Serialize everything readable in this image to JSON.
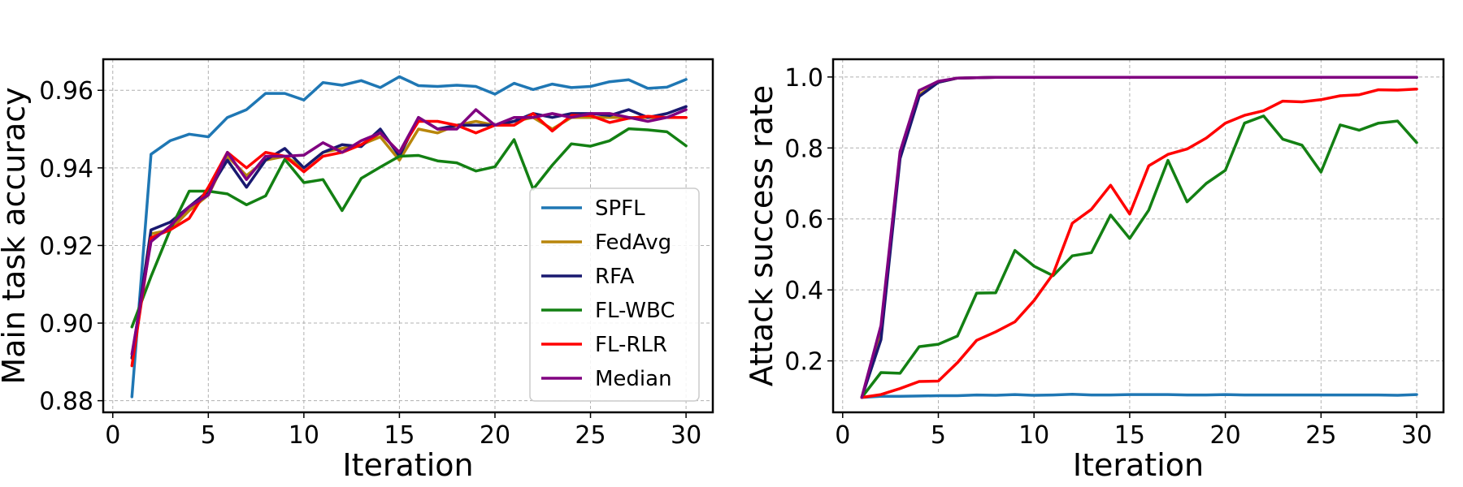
{
  "chart_data": [
    {
      "type": "line",
      "xlabel": "Iteration",
      "ylabel": "Main task accuracy",
      "xlim": [
        -0.5,
        31.4
      ],
      "ylim": [
        0.877,
        0.968
      ],
      "xticks": [
        0,
        5,
        10,
        15,
        20,
        25,
        30
      ],
      "xtick_labels": [
        "0",
        "5",
        "10",
        "15",
        "20",
        "25",
        "30"
      ],
      "yticks": [
        0.88,
        0.9,
        0.92,
        0.94,
        0.96
      ],
      "ytick_labels": [
        "0.88",
        "0.90",
        "0.92",
        "0.94",
        "0.96"
      ],
      "grid": true,
      "legend": "lower-right",
      "x": [
        1,
        2,
        3,
        4,
        5,
        6,
        7,
        8,
        9,
        10,
        11,
        12,
        13,
        14,
        15,
        16,
        17,
        18,
        19,
        20,
        21,
        22,
        23,
        24,
        25,
        26,
        27,
        28,
        29,
        30
      ],
      "series": [
        {
          "name": "SPFL",
          "color": "#1f77b4",
          "values": [
            0.881,
            0.9435,
            0.947,
            0.9487,
            0.948,
            0.953,
            0.955,
            0.9592,
            0.9592,
            0.9575,
            0.962,
            0.9613,
            0.9625,
            0.9607,
            0.9635,
            0.9612,
            0.961,
            0.9613,
            0.961,
            0.959,
            0.9618,
            0.9602,
            0.9616,
            0.9607,
            0.961,
            0.9622,
            0.9627,
            0.9605,
            0.9608,
            0.9628
          ]
        },
        {
          "name": "FedAvg",
          "color": "#b8860b",
          "values": [
            0.891,
            0.923,
            0.924,
            0.929,
            0.933,
            0.943,
            0.938,
            0.942,
            0.943,
            0.94,
            0.944,
            0.945,
            0.946,
            0.948,
            0.942,
            0.95,
            0.949,
            0.951,
            0.952,
            0.951,
            0.952,
            0.953,
            0.95,
            0.953,
            0.953,
            0.953,
            0.953,
            0.953,
            0.953,
            0.953
          ]
        },
        {
          "name": "RFA",
          "color": "#191970",
          "values": [
            0.891,
            0.924,
            0.926,
            0.93,
            0.934,
            0.942,
            0.935,
            0.942,
            0.945,
            0.94,
            0.944,
            0.946,
            0.9455,
            0.95,
            0.943,
            0.953,
            0.95,
            0.951,
            0.951,
            0.951,
            0.952,
            0.954,
            0.953,
            0.954,
            0.954,
            0.9535,
            0.955,
            0.953,
            0.954,
            0.9558
          ]
        },
        {
          "name": "FL-WBC",
          "color": "#138013",
          "values": [
            0.899,
            0.912,
            0.924,
            0.934,
            0.934,
            0.9333,
            0.9305,
            0.9328,
            0.9422,
            0.9362,
            0.937,
            0.929,
            0.9373,
            0.9402,
            0.943,
            0.9432,
            0.9418,
            0.9413,
            0.9392,
            0.9403,
            0.9473,
            0.9345,
            0.9407,
            0.9462,
            0.9456,
            0.947,
            0.9501,
            0.9498,
            0.9493,
            0.9457
          ]
        },
        {
          "name": "FL-RLR",
          "color": "#ff0000",
          "values": [
            0.889,
            0.922,
            0.924,
            0.927,
            0.935,
            0.944,
            0.94,
            0.944,
            0.943,
            0.939,
            0.943,
            0.944,
            0.946,
            0.949,
            0.944,
            0.952,
            0.952,
            0.951,
            0.949,
            0.951,
            0.951,
            0.954,
            0.9495,
            0.9535,
            0.9535,
            0.9517,
            0.9528,
            0.9533,
            0.953,
            0.953
          ]
        },
        {
          "name": "Median",
          "color": "#800080",
          "values": [
            0.892,
            0.921,
            0.925,
            0.93,
            0.933,
            0.944,
            0.937,
            0.943,
            0.943,
            0.9433,
            0.9465,
            0.944,
            0.947,
            0.949,
            0.944,
            0.953,
            0.95,
            0.95,
            0.955,
            0.951,
            0.953,
            0.953,
            0.954,
            0.953,
            0.954,
            0.954,
            0.953,
            0.952,
            0.953,
            0.955
          ]
        }
      ]
    },
    {
      "type": "line",
      "xlabel": "Iteration",
      "ylabel": "Attack success rate",
      "xlim": [
        -0.5,
        31.4
      ],
      "ylim": [
        0.055,
        1.05
      ],
      "xticks": [
        0,
        5,
        10,
        15,
        20,
        25,
        30
      ],
      "xtick_labels": [
        "0",
        "5",
        "10",
        "15",
        "20",
        "25",
        "30"
      ],
      "yticks": [
        0.2,
        0.4,
        0.6,
        0.8,
        1.0
      ],
      "ytick_labels": [
        "0.2",
        "0.4",
        "0.6",
        "0.8",
        "1.0"
      ],
      "grid": true,
      "x": [
        1,
        2,
        3,
        4,
        5,
        6,
        7,
        8,
        9,
        10,
        11,
        12,
        13,
        14,
        15,
        16,
        17,
        18,
        19,
        20,
        21,
        22,
        23,
        24,
        25,
        26,
        27,
        28,
        29,
        30
      ],
      "series": [
        {
          "name": "SPFL",
          "color": "#1f77b4",
          "values": [
            0.097,
            0.1,
            0.1,
            0.101,
            0.102,
            0.102,
            0.104,
            0.103,
            0.105,
            0.103,
            0.104,
            0.106,
            0.104,
            0.104,
            0.105,
            0.105,
            0.105,
            0.104,
            0.104,
            0.105,
            0.104,
            0.104,
            0.104,
            0.104,
            0.104,
            0.104,
            0.104,
            0.104,
            0.103,
            0.105
          ]
        },
        {
          "name": "FedAvg",
          "color": "#b8860b",
          "values": [
            0.097,
            0.27,
            0.78,
            0.95,
            0.985,
            0.997,
            0.998,
            0.999,
            0.999,
            0.999,
            0.999,
            0.999,
            0.999,
            0.999,
            0.999,
            0.999,
            0.999,
            0.999,
            0.999,
            0.999,
            0.999,
            0.999,
            0.999,
            0.999,
            0.999,
            0.999,
            0.999,
            0.999,
            0.999,
            0.999
          ]
        },
        {
          "name": "RFA",
          "color": "#191970",
          "values": [
            0.097,
            0.26,
            0.77,
            0.945,
            0.985,
            0.997,
            0.998,
            0.999,
            0.999,
            0.999,
            0.999,
            0.999,
            0.999,
            0.999,
            0.999,
            0.999,
            0.999,
            0.999,
            0.999,
            0.999,
            0.999,
            0.999,
            0.999,
            0.999,
            0.999,
            0.999,
            0.999,
            0.999,
            0.999,
            0.999
          ]
        },
        {
          "name": "FL-WBC",
          "color": "#138013",
          "values": [
            0.097,
            0.167,
            0.165,
            0.24,
            0.247,
            0.27,
            0.391,
            0.392,
            0.511,
            0.467,
            0.44,
            0.496,
            0.505,
            0.611,
            0.545,
            0.625,
            0.765,
            0.648,
            0.7,
            0.737,
            0.87,
            0.89,
            0.825,
            0.808,
            0.732,
            0.865,
            0.85,
            0.87,
            0.876,
            0.815
          ]
        },
        {
          "name": "FL-RLR",
          "color": "#ff0000",
          "values": [
            0.097,
            0.105,
            0.122,
            0.142,
            0.143,
            0.195,
            0.258,
            0.282,
            0.31,
            0.37,
            0.445,
            0.588,
            0.627,
            0.695,
            0.614,
            0.75,
            0.782,
            0.797,
            0.828,
            0.87,
            0.892,
            0.905,
            0.932,
            0.93,
            0.936,
            0.947,
            0.95,
            0.964,
            0.963,
            0.966
          ]
        },
        {
          "name": "Median",
          "color": "#800080",
          "values": [
            0.097,
            0.3,
            0.79,
            0.962,
            0.988,
            0.997,
            0.998,
            0.999,
            0.999,
            0.999,
            0.999,
            0.999,
            0.999,
            0.999,
            0.999,
            0.999,
            0.999,
            0.999,
            0.999,
            0.999,
            0.999,
            0.999,
            0.999,
            0.999,
            0.999,
            0.999,
            0.999,
            0.999,
            0.999,
            0.999
          ]
        }
      ]
    }
  ]
}
